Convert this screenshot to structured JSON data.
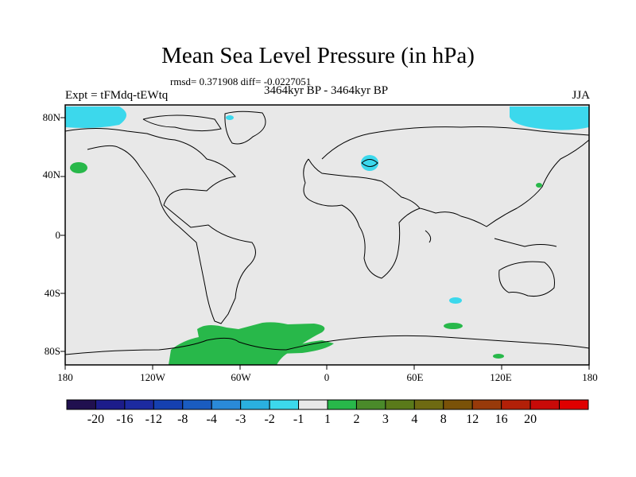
{
  "title": "Mean Sea Level Pressure (in hPa)",
  "stats": "rmsd= 0.371908 diff= -0.0227051",
  "subtitle": "3464kyr BP - 3464kyr BP",
  "experiment": "Expt = tFMdq-tEWtq",
  "season": "JJA",
  "lat_labels": [
    "80N",
    "40N",
    "0",
    "40S",
    "80S"
  ],
  "lon_labels": [
    "180",
    "120W",
    "60W",
    "0",
    "60E",
    "120E",
    "180"
  ],
  "colorbar": {
    "colors": [
      "#20104f",
      "#1c1c8a",
      "#1c2aa0",
      "#1540b0",
      "#1a5cc0",
      "#2a8ad8",
      "#2ab0e0",
      "#3cd8ec",
      "#e8e8e8",
      "#28b84a",
      "#4a8a2a",
      "#5a7a1a",
      "#6e6a12",
      "#7a5208",
      "#983a0a",
      "#b22008",
      "#c80a08",
      "#e00000"
    ],
    "labels": [
      "-20",
      "-16",
      "-12",
      "-8",
      "-4",
      "-3",
      "-2",
      "-1",
      "1",
      "2",
      "3",
      "4",
      "8",
      "12",
      "16",
      "20"
    ]
  },
  "colors": {
    "background_field": "#e8e8e8",
    "positive_anomaly": "#28b84a",
    "negative_anomaly": "#3cd8ec",
    "coastline": "#000000"
  }
}
